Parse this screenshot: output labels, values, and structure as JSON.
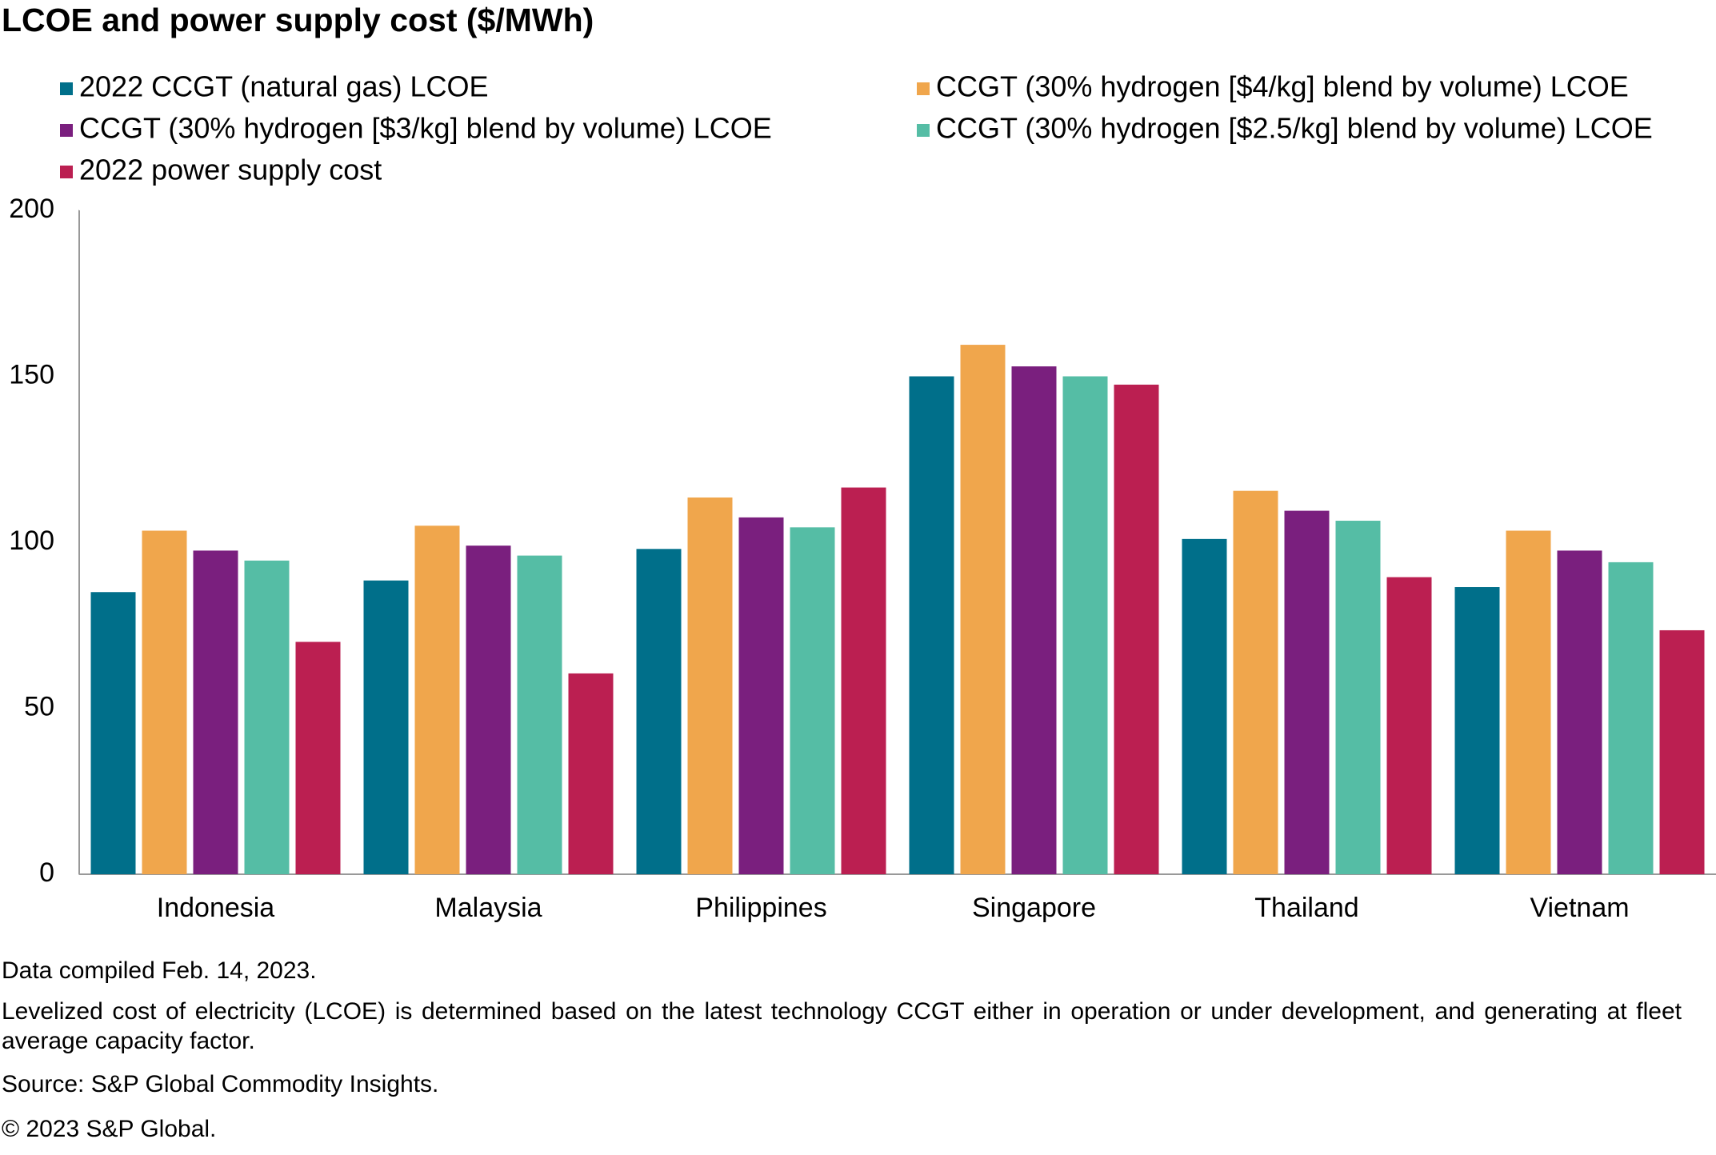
{
  "chart_data": {
    "type": "bar",
    "title": "LCOE and power supply cost ($/MWh)",
    "categories": [
      "Indonesia",
      "Malaysia",
      "Philippines",
      "Singapore",
      "Thailand",
      "Vietnam"
    ],
    "series": [
      {
        "name": "2022 CCGT (natural gas) LCOE",
        "color": "#006f8a",
        "values": [
          85,
          88.5,
          98,
          150,
          101,
          86.5
        ]
      },
      {
        "name": "CCGT (30% hydrogen [$4/kg] blend by volume) LCOE",
        "color": "#f0a64c",
        "values": [
          103.5,
          105,
          113.5,
          159.5,
          115.5,
          103.5
        ]
      },
      {
        "name": "CCGT (30% hydrogen [$3/kg] blend by volume) LCOE",
        "color": "#7a1f7e",
        "values": [
          97.5,
          99,
          107.5,
          153,
          109.5,
          97.5
        ]
      },
      {
        "name": "CCGT (30% hydrogen [$2.5/kg] blend by volume) LCOE",
        "color": "#55bda5",
        "values": [
          94.5,
          96,
          104.5,
          150,
          106.5,
          94
        ]
      },
      {
        "name": "2022 power supply cost",
        "color": "#bb1f51",
        "values": [
          70,
          60.5,
          116.5,
          147.5,
          89.5,
          73.5
        ]
      }
    ],
    "ylim": [
      0,
      200
    ],
    "yticks": [
      0,
      50,
      100,
      150,
      200
    ],
    "grid": false,
    "notes": [
      "Data compiled Feb. 14, 2023.",
      "Levelized cost of electricity (LCOE) is determined based on the latest technology CCGT either in operation or under development, and generating at fleet average capacity factor.",
      "Source: S&P Global Commodity Insights.",
      "© 2023 S&P Global."
    ]
  }
}
